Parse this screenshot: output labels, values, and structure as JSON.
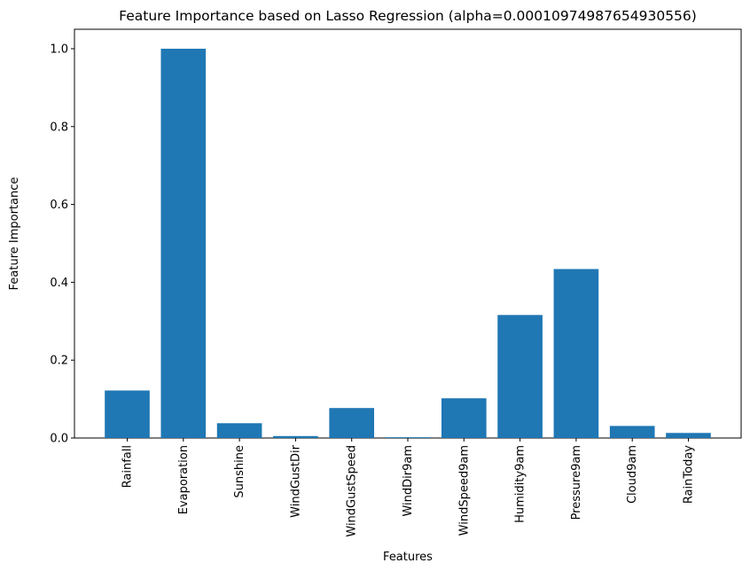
{
  "chart_data": {
    "type": "bar",
    "title": "Feature Importance based on Lasso Regression (alpha=0.00010974987654930556)",
    "xlabel": "Features",
    "ylabel": "Feature Importance",
    "categories": [
      "Rainfall",
      "Evaporation",
      "Sunshine",
      "WindGustDir",
      "WindGustSpeed",
      "WindDir9am",
      "WindSpeed9am",
      "Humidity9am",
      "Pressure9am",
      "Cloud9am",
      "RainToday"
    ],
    "values": [
      0.122,
      1.0,
      0.038,
      0.005,
      0.077,
      0.002,
      0.102,
      0.316,
      0.434,
      0.031,
      0.013
    ],
    "ylim": [
      0,
      1.05
    ],
    "yticks": [
      0.0,
      0.2,
      0.4,
      0.6,
      0.8,
      1.0
    ],
    "ytick_labels": [
      "0.0",
      "0.2",
      "0.4",
      "0.6",
      "0.8",
      "1.0"
    ],
    "bar_color": "#1f77b4",
    "grid": false,
    "legend": "none"
  }
}
